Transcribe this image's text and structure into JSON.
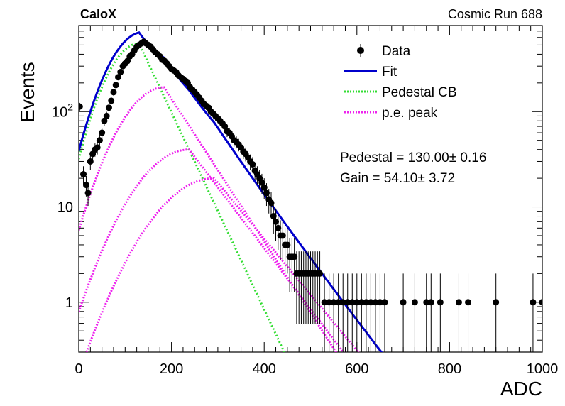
{
  "header": {
    "left": "CaloX",
    "right": "Cosmic Run 688"
  },
  "chart_data": {
    "type": "scatter",
    "xlabel": "ADC",
    "ylabel": "Events",
    "xlim": [
      0,
      1000
    ],
    "ylim": [
      0.3,
      800
    ],
    "yscale": "log",
    "x_ticks": [
      0,
      200,
      400,
      600,
      800,
      1000
    ],
    "y_ticks": [
      1,
      10,
      100
    ],
    "y_tick_labels": [
      "1",
      "10",
      "10^2"
    ],
    "legend": {
      "placement": "top-right",
      "entries": [
        {
          "label": "Data",
          "style": "marker",
          "color": "#000000"
        },
        {
          "label": "Fit",
          "style": "line",
          "color": "#0000cc"
        },
        {
          "label": "Pedestal CB",
          "style": "dotted",
          "color": "#33dd33"
        },
        {
          "label": "p.e. peak",
          "style": "dotted",
          "color": "#ee22ee"
        }
      ]
    },
    "annotations": [
      {
        "name": "pedestal",
        "label": "Pedestal = 130.00",
        "pm": "0.16"
      },
      {
        "name": "gain",
        "label": "Gain = 54.10",
        "pm": "3.72"
      }
    ],
    "series": [
      {
        "name": "Data",
        "kind": "points",
        "color": "#000000",
        "points": [
          [
            2,
            113
          ],
          [
            10,
            22
          ],
          [
            16,
            17
          ],
          [
            20,
            14
          ],
          [
            25,
            30
          ],
          [
            30,
            36
          ],
          [
            35,
            40
          ],
          [
            40,
            42
          ],
          [
            45,
            50
          ],
          [
            50,
            60
          ],
          [
            55,
            80
          ],
          [
            60,
            90
          ],
          [
            65,
            110
          ],
          [
            70,
            130
          ],
          [
            75,
            160
          ],
          [
            80,
            190
          ],
          [
            85,
            230
          ],
          [
            90,
            260
          ],
          [
            95,
            300
          ],
          [
            100,
            320
          ],
          [
            105,
            340
          ],
          [
            110,
            380
          ],
          [
            115,
            400
          ],
          [
            120,
            440
          ],
          [
            125,
            480
          ],
          [
            130,
            500
          ],
          [
            135,
            520
          ],
          [
            140,
            540
          ],
          [
            145,
            520
          ],
          [
            150,
            500
          ],
          [
            155,
            480
          ],
          [
            160,
            450
          ],
          [
            165,
            420
          ],
          [
            170,
            400
          ],
          [
            175,
            380
          ],
          [
            180,
            350
          ],
          [
            185,
            340
          ],
          [
            190,
            320
          ],
          [
            195,
            300
          ],
          [
            200,
            280
          ],
          [
            205,
            270
          ],
          [
            210,
            260
          ],
          [
            215,
            240
          ],
          [
            220,
            230
          ],
          [
            225,
            220
          ],
          [
            230,
            210
          ],
          [
            235,
            200
          ],
          [
            240,
            180
          ],
          [
            245,
            170
          ],
          [
            250,
            160
          ],
          [
            255,
            150
          ],
          [
            260,
            140
          ],
          [
            265,
            130
          ],
          [
            270,
            120
          ],
          [
            275,
            115
          ],
          [
            280,
            110
          ],
          [
            285,
            100
          ],
          [
            290,
            95
          ],
          [
            295,
            90
          ],
          [
            300,
            85
          ],
          [
            305,
            80
          ],
          [
            310,
            75
          ],
          [
            315,
            70
          ],
          [
            320,
            62
          ],
          [
            325,
            60
          ],
          [
            330,
            55
          ],
          [
            335,
            50
          ],
          [
            340,
            48
          ],
          [
            345,
            45
          ],
          [
            350,
            42
          ],
          [
            355,
            38
          ],
          [
            360,
            36
          ],
          [
            365,
            33
          ],
          [
            370,
            30
          ],
          [
            375,
            28
          ],
          [
            380,
            24
          ],
          [
            385,
            22
          ],
          [
            390,
            20
          ],
          [
            395,
            18
          ],
          [
            400,
            16
          ],
          [
            405,
            14
          ],
          [
            410,
            12
          ],
          [
            415,
            11
          ],
          [
            420,
            8
          ],
          [
            425,
            7
          ],
          [
            430,
            6
          ],
          [
            435,
            5
          ],
          [
            440,
            5
          ],
          [
            445,
            4
          ],
          [
            450,
            4
          ],
          [
            455,
            3
          ],
          [
            460,
            3
          ],
          [
            465,
            3
          ],
          [
            470,
            2
          ],
          [
            475,
            2
          ],
          [
            480,
            2
          ],
          [
            485,
            2
          ],
          [
            490,
            2
          ],
          [
            495,
            2
          ],
          [
            500,
            2
          ],
          [
            505,
            2
          ],
          [
            510,
            2
          ],
          [
            515,
            2
          ],
          [
            520,
            2
          ],
          [
            530,
            1
          ],
          [
            540,
            1
          ],
          [
            550,
            1
          ],
          [
            560,
            1
          ],
          [
            570,
            1
          ],
          [
            580,
            1
          ],
          [
            590,
            1
          ],
          [
            600,
            1
          ],
          [
            610,
            1
          ],
          [
            620,
            1
          ],
          [
            630,
            1
          ],
          [
            640,
            1
          ],
          [
            650,
            1
          ],
          [
            660,
            1
          ],
          [
            700,
            1
          ],
          [
            725,
            1
          ],
          [
            750,
            1
          ],
          [
            760,
            1
          ],
          [
            780,
            1
          ],
          [
            820,
            1
          ],
          [
            840,
            1
          ],
          [
            900,
            1
          ],
          [
            980,
            1
          ],
          [
            1000,
            1
          ]
        ]
      },
      {
        "name": "Fit",
        "kind": "curve",
        "color": "#0000cc"
      },
      {
        "name": "Pedestal CB",
        "kind": "curve",
        "color": "#33dd33"
      },
      {
        "name": "p.e. peak",
        "kind": "curve",
        "color": "#ee22ee"
      }
    ]
  }
}
